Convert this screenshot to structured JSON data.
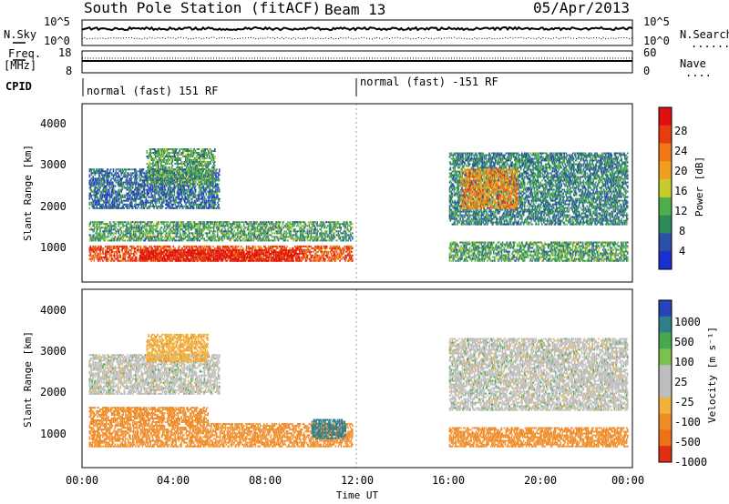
{
  "header": {
    "station": "South Pole Station (fitACF)",
    "beam": "Beam 13",
    "date": "05/Apr/2013"
  },
  "noise_panel": {
    "left_label": "N.Sky",
    "right_label": "N.Search",
    "right_dots": "........",
    "left_ticks": [
      "10^5",
      "10^0"
    ],
    "right_ticks": [
      "10^5",
      "10^0"
    ]
  },
  "freq_panel": {
    "left_label_1": "Freq.",
    "left_label_2": "[MHz]",
    "right_label": "Nave",
    "right_dots": "....",
    "left_ticks": [
      "18",
      "8"
    ],
    "right_ticks": [
      "60",
      "0"
    ]
  },
  "cpid": {
    "label": "CPID",
    "segments": [
      "normal (fast) 151 RF",
      "normal (fast) -151 RF"
    ]
  },
  "axes": {
    "ylabel": "Slant Range [km]",
    "xlabel": "Time UT",
    "yticks": [
      "4000",
      "3000",
      "2000",
      "1000"
    ],
    "xticks": [
      "00:00",
      "04:00",
      "08:00",
      "12:00",
      "16:00",
      "20:00",
      "00:00"
    ]
  },
  "colors": {
    "power": [
      "#1a2fd0",
      "#2c4fa8",
      "#2f8a5a",
      "#4db04a",
      "#c8cc2a",
      "#f0a020",
      "#f07818",
      "#e83c10",
      "#e01010"
    ],
    "velocity_pos": [
      "#2444b8",
      "#2f7e8a",
      "#48a84e",
      "#7cc050"
    ],
    "velocity_ground": "#bdbdbd",
    "velocity_neg": [
      "#f0b23c",
      "#f08c28",
      "#f07018",
      "#e03010"
    ]
  },
  "chart_data": [
    {
      "type": "heatmap",
      "panel": "power",
      "title": "",
      "xlabel": "Time UT",
      "ylabel": "Slant Range [km]",
      "xlim": [
        0,
        24
      ],
      "ylim": [
        200,
        4600
      ],
      "colorbar": {
        "label": "Power [dB]",
        "ticks": [
          "28",
          "24",
          "20",
          "16",
          "12",
          "8",
          "4"
        ],
        "range": [
          0,
          30
        ]
      },
      "regions": [
        {
          "t0": 0.3,
          "t1": 11.8,
          "r0": 700,
          "r1": 1100,
          "value": 24
        },
        {
          "t0": 2.5,
          "t1": 9.5,
          "r0": 700,
          "r1": 1000,
          "value": 28
        },
        {
          "t0": 0.3,
          "t1": 11.8,
          "r0": 1200,
          "r1": 1700,
          "value": 10
        },
        {
          "t0": 0.3,
          "t1": 6.0,
          "r0": 2000,
          "r1": 3000,
          "value": 6
        },
        {
          "t0": 2.8,
          "t1": 5.8,
          "r0": 2600,
          "r1": 3500,
          "value": 10
        },
        {
          "t0": 16.0,
          "t1": 23.8,
          "r0": 700,
          "r1": 1200,
          "value": 10
        },
        {
          "t0": 16.0,
          "t1": 23.8,
          "r0": 1600,
          "r1": 3400,
          "value": 8
        },
        {
          "t0": 16.5,
          "t1": 19.0,
          "r0": 2000,
          "r1": 3000,
          "value": 20
        }
      ]
    },
    {
      "type": "heatmap",
      "panel": "velocity",
      "title": "",
      "xlabel": "Time UT",
      "ylabel": "Slant Range [km]",
      "xlim": [
        0,
        24
      ],
      "ylim": [
        200,
        4600
      ],
      "colorbar": {
        "label": "Velocity [m s⁻¹]",
        "ticks": [
          "1000",
          "500",
          "100",
          "25",
          "-25",
          "-100",
          "-500",
          "-1000"
        ],
        "range": [
          -1200,
          1200
        ]
      },
      "regions": [
        {
          "t0": 0.3,
          "t1": 11.8,
          "r0": 700,
          "r1": 1300,
          "value": -300
        },
        {
          "t0": 0.3,
          "t1": 5.5,
          "r0": 1300,
          "r1": 1700,
          "value": -150
        },
        {
          "t0": 0.3,
          "t1": 6.0,
          "r0": 2000,
          "r1": 3000,
          "value": 0
        },
        {
          "t0": 2.8,
          "t1": 5.5,
          "r0": 2800,
          "r1": 3500,
          "value": -80
        },
        {
          "t0": 16.0,
          "t1": 23.8,
          "r0": 1600,
          "r1": 3400,
          "value": 0
        },
        {
          "t0": 16.0,
          "t1": 23.8,
          "r0": 700,
          "r1": 1200,
          "value": -200
        },
        {
          "t0": 10.0,
          "t1": 11.5,
          "r0": 900,
          "r1": 1400,
          "value": 200
        }
      ]
    }
  ]
}
